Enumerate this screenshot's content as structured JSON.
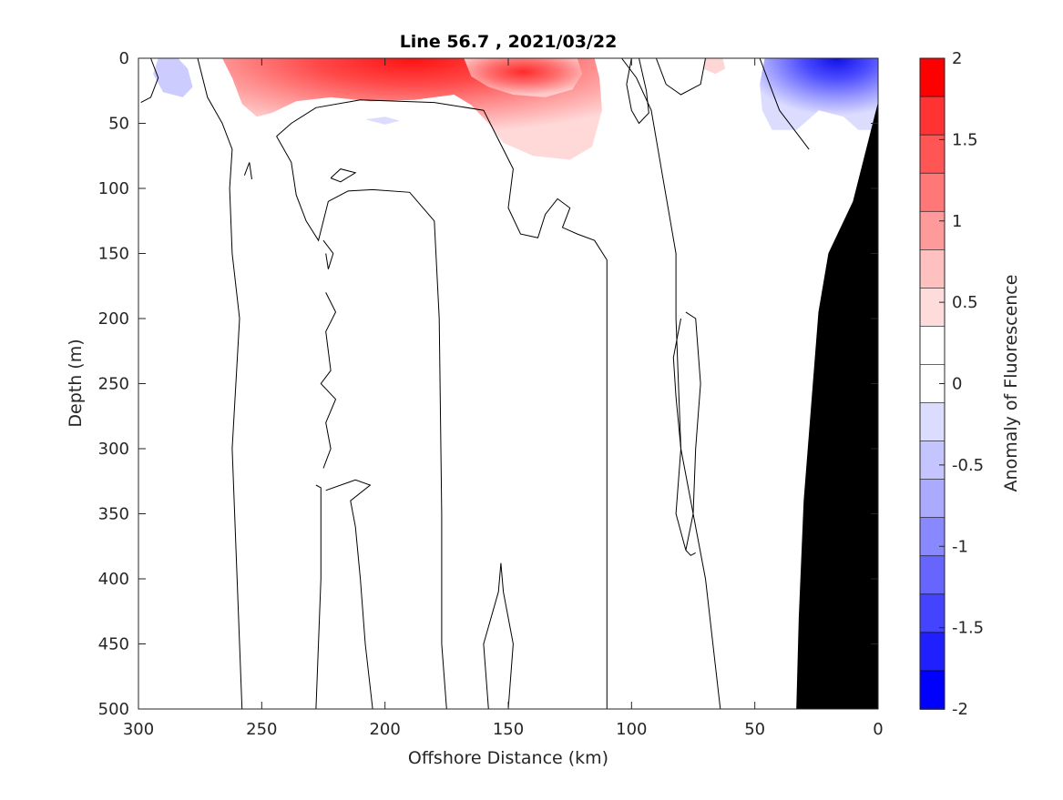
{
  "chart_data": {
    "type": "heatmap",
    "title": "Line 56.7 , 2021/03/22",
    "xlabel": "Offshore Distance (km)",
    "ylabel": "Depth (m)",
    "xlim": [
      300,
      0
    ],
    "ylim": [
      0,
      500
    ],
    "x_reversed": true,
    "y_reversed": true,
    "xticks": [
      300,
      250,
      200,
      150,
      100,
      50,
      0
    ],
    "yticks": [
      0,
      50,
      100,
      150,
      200,
      250,
      300,
      350,
      400,
      450,
      500
    ],
    "colorbar": {
      "label": "Anomaly of Fluorescence",
      "range": [
        -2,
        2
      ],
      "ticks": [
        2,
        1.5,
        1,
        0.5,
        0,
        -0.5,
        -1,
        -1.5,
        -2
      ],
      "tick_labels": [
        "2",
        "1.5",
        "1",
        "0.5",
        "0",
        "-0.5",
        "-1",
        "-1.5",
        "-2"
      ],
      "levels": [
        -2,
        -1.75,
        -1.5,
        -1.25,
        -1,
        -0.75,
        -0.5,
        -0.25,
        0,
        0.25,
        0.5,
        0.75,
        1,
        1.25,
        1.5,
        1.75,
        2
      ],
      "colors": [
        "#0000ff",
        "#2020ff",
        "#4444ff",
        "#6666ff",
        "#8888ff",
        "#aaaaff",
        "#c4c4ff",
        "#dcdcff",
        "#ffffff",
        "#ffffff",
        "#ffdcdc",
        "#ffc0c0",
        "#ff9a9a",
        "#ff7777",
        "#ff5555",
        "#ff3333",
        "#ff0000"
      ]
    },
    "anomalies": [
      {
        "name": "surface-positive-core",
        "x_range": [
          265,
          115
        ],
        "depth_range": [
          0,
          75
        ],
        "peak_value": 1.75,
        "peak_at": [
          200,
          0
        ]
      },
      {
        "name": "secondary-positive-core",
        "x_range": [
          160,
          120
        ],
        "depth_range": [
          0,
          40
        ],
        "peak_value": 1.5,
        "peak_at": [
          135,
          15
        ]
      },
      {
        "name": "nearshore-negative-core",
        "x_range": [
          45,
          0
        ],
        "depth_range": [
          0,
          55
        ],
        "peak_value": -1.75,
        "peak_at": [
          20,
          5
        ]
      },
      {
        "name": "offshore-negative-patch",
        "x_range": [
          292,
          278
        ],
        "depth_range": [
          0,
          30
        ],
        "peak_value": -0.6,
        "peak_at": [
          285,
          10
        ]
      }
    ],
    "bathymetry": {
      "fill": "#000000",
      "depth": [
        35,
        110,
        150,
        195,
        340,
        430,
        500
      ],
      "x": [
        0,
        10,
        20,
        24,
        30,
        32,
        33
      ]
    }
  }
}
